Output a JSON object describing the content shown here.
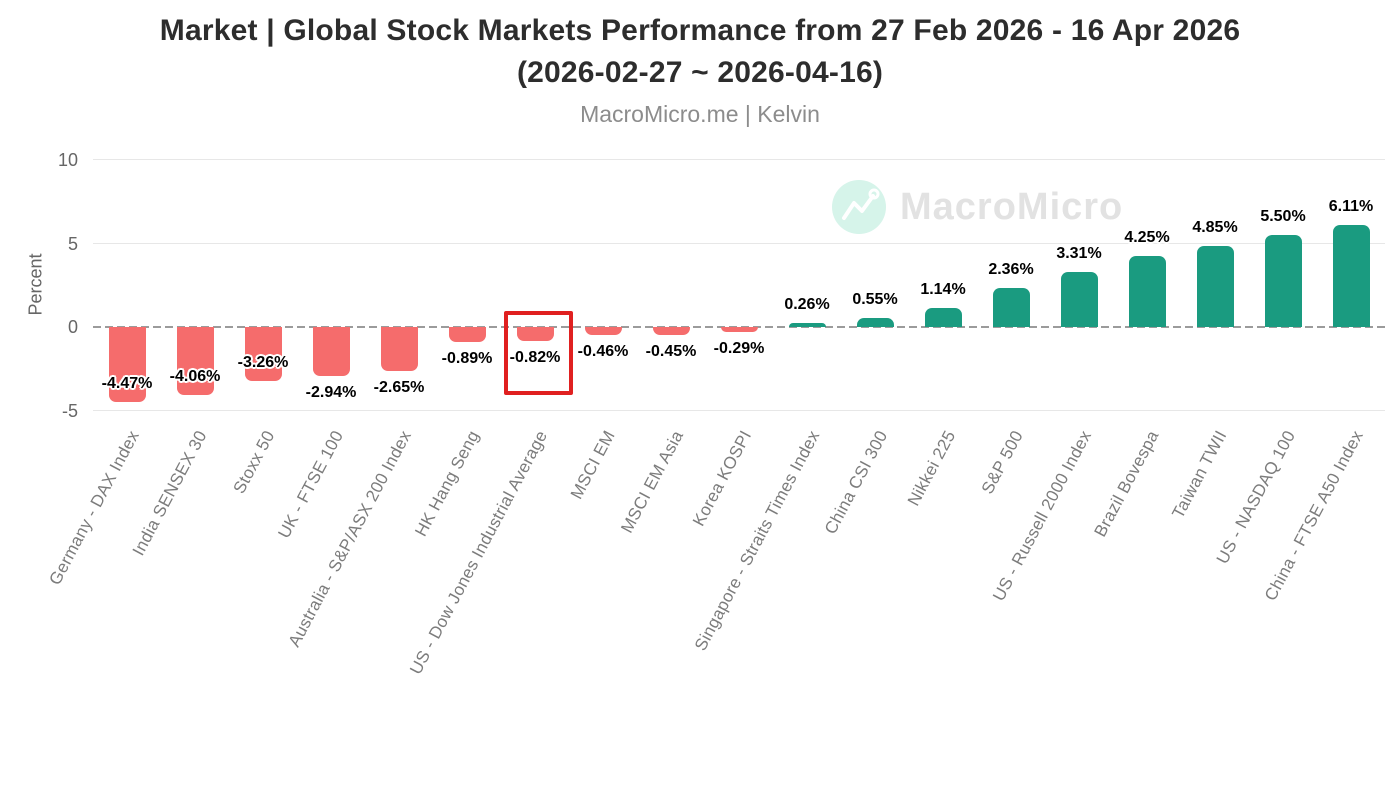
{
  "header": {
    "title_line1": "Market | Global Stock Markets Performance from 27 Feb 2026 - 16 Apr 2026",
    "title_line2": "(2026-02-27 ~ 2026-04-16)",
    "subtitle": "MacroMicro.me | Kelvin"
  },
  "watermark": {
    "text": "MacroMicro",
    "icon": "line-chart-logo",
    "circle_color": "#d6f4ea",
    "text_color": "#e2e2e2"
  },
  "chart_data": {
    "type": "bar",
    "title": "Market | Global Stock Markets Performance from 27 Feb 2026 - 16 Apr 2026 (2026-02-27 ~ 2026-04-16)",
    "subtitle": "MacroMicro.me | Kelvin",
    "xlabel": "",
    "ylabel": "Percent",
    "yticks": [
      10,
      5,
      0,
      -5
    ],
    "ylim": [
      -5,
      10
    ],
    "grid": true,
    "zero_line_style": "dashed",
    "legend": null,
    "categories": [
      "Germany - DAX Index",
      "India SENSEX 30",
      "Stoxx 50",
      "UK - FTSE 100",
      "Australia - S&P/ASX 200 Index",
      "HK Hang Seng",
      "US - Dow Jones Industrial Average",
      "MSCI EM",
      "MSCI EM Asia",
      "Korea KOSPI",
      "Singapore - Straits Times Index",
      "China CSI 300",
      "Nikkei 225",
      "S&P 500",
      "US - Russell 2000 Index",
      "Brazil Bovespa",
      "Taiwan TWII",
      "US - NASDAQ 100",
      "China - FTSE A50 Index"
    ],
    "values": [
      -4.47,
      -4.06,
      -3.26,
      -2.94,
      -2.65,
      -0.89,
      -0.82,
      -0.46,
      -0.45,
      -0.29,
      0.26,
      0.55,
      1.14,
      2.36,
      3.31,
      4.25,
      4.85,
      5.5,
      6.11
    ],
    "labels": [
      "-4.47%",
      "-4.06%",
      "-3.26%",
      "-2.94%",
      "-2.65%",
      "-0.89%",
      "-0.82%",
      "-0.46%",
      "-0.45%",
      "-0.29%",
      "0.26%",
      "0.55%",
      "1.14%",
      "2.36%",
      "3.31%",
      "4.25%",
      "4.85%",
      "5.50%",
      "6.11%"
    ],
    "colors": {
      "negative_bar": "#f56c6c",
      "positive_bar": "#1a9b80",
      "highlight_box": "#e02020",
      "gridline": "#e7e7e7",
      "zero_line": "#9b9b9b",
      "axis_text": "#666666",
      "category_text": "#7c7c7c",
      "value_text": "#000000"
    },
    "highlighted_category": "US - Dow Jones Industrial Average",
    "highlighted_index": 6
  }
}
